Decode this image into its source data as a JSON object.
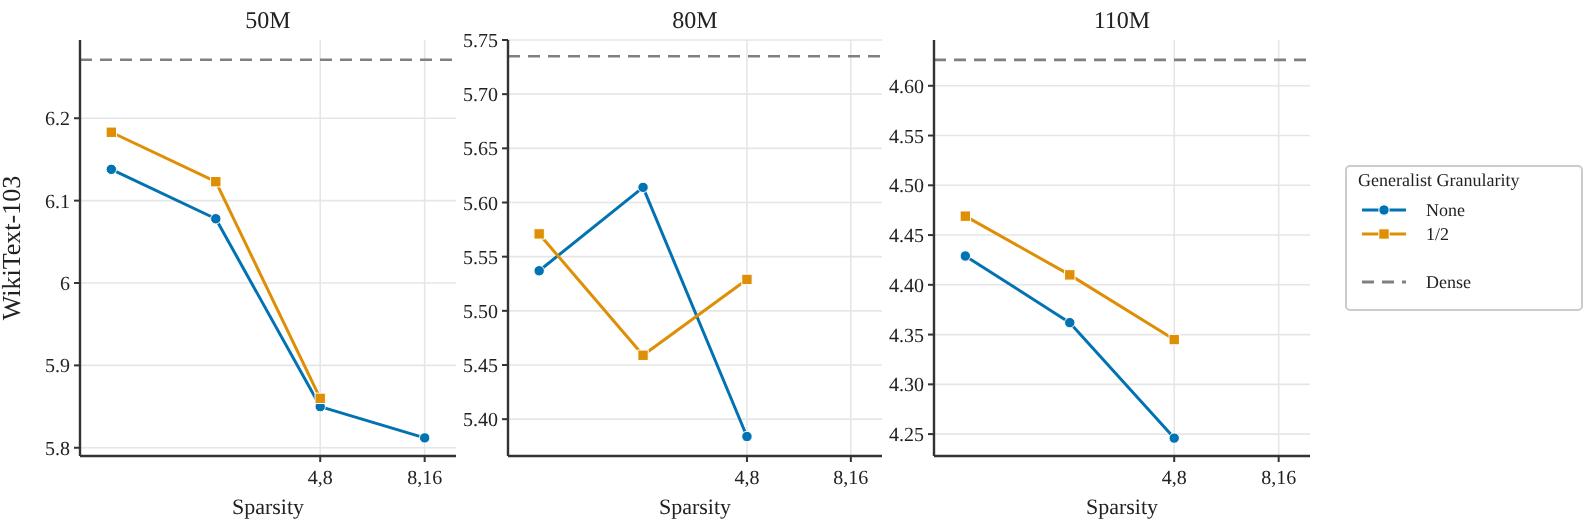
{
  "chart_data": [
    {
      "type": "line",
      "title": "50M",
      "xlabel": "Sparsity",
      "ylabel": "WikiText-103",
      "categories": [
        null,
        null,
        "4,8",
        "8,16"
      ],
      "ylim": [
        5.79,
        6.295
      ],
      "yticks": [
        5.8,
        5.9,
        6.0,
        6.1,
        6.2
      ],
      "grid": true,
      "legend": false,
      "series": [
        {
          "color": "#0173b2",
          "marker": "circle",
          "values": [
            6.138,
            6.078,
            5.85,
            5.812
          ]
        },
        {
          "color": "#de8f05",
          "marker": "square",
          "values": [
            6.183,
            6.123,
            5.86,
            null
          ]
        }
      ],
      "ref_lines": [
        {
          "axis": "y",
          "value": 6.271,
          "color": "#808080",
          "line_style": "dashed"
        }
      ]
    },
    {
      "type": "line",
      "title": "80M",
      "xlabel": "Sparsity",
      "categories": [
        null,
        null,
        "4,8",
        "8,16"
      ],
      "ylim": [
        5.366,
        5.75
      ],
      "yticks": [
        {
          "value": 5.4,
          "label": "5.40"
        },
        5.45,
        {
          "value": 5.5,
          "label": "5.50"
        },
        5.55,
        {
          "value": 5.6,
          "label": "5.60"
        },
        5.65,
        {
          "value": 5.7,
          "label": "5.70"
        },
        5.75
      ],
      "grid": true,
      "legend": false,
      "series": [
        {
          "color": "#0173b2",
          "marker": "circle",
          "values": [
            5.537,
            5.614,
            5.384,
            null
          ]
        },
        {
          "color": "#de8f05",
          "marker": "square",
          "values": [
            5.571,
            5.459,
            5.529,
            null
          ]
        }
      ],
      "ref_lines": [
        {
          "axis": "y",
          "value": 5.735,
          "color": "#808080",
          "line_style": "dashed"
        }
      ]
    },
    {
      "type": "line",
      "title": "110M",
      "xlabel": "Sparsity",
      "categories": [
        null,
        null,
        "4,8",
        "8,16"
      ],
      "ylim": [
        4.228,
        4.646
      ],
      "yticks": [
        4.25,
        {
          "value": 4.3,
          "label": "4.30"
        },
        4.35,
        {
          "value": 4.4,
          "label": "4.40"
        },
        4.45,
        {
          "value": 4.5,
          "label": "4.50"
        },
        4.55,
        {
          "value": 4.6,
          "label": "4.60"
        }
      ],
      "grid": true,
      "legend": "right",
      "legend_title": "Generalist Granularity",
      "series": [
        {
          "name": "None",
          "color": "#0173b2",
          "marker": "circle",
          "values": [
            4.429,
            4.362,
            4.246,
            null
          ]
        },
        {
          "name": "1/2",
          "color": "#de8f05",
          "marker": "square",
          "values": [
            4.469,
            4.41,
            4.345,
            null
          ]
        }
      ],
      "ref_lines": [
        {
          "axis": "y",
          "value": 4.626,
          "color": "#808080",
          "line_style": "dashed",
          "label": "Dense"
        }
      ]
    }
  ]
}
